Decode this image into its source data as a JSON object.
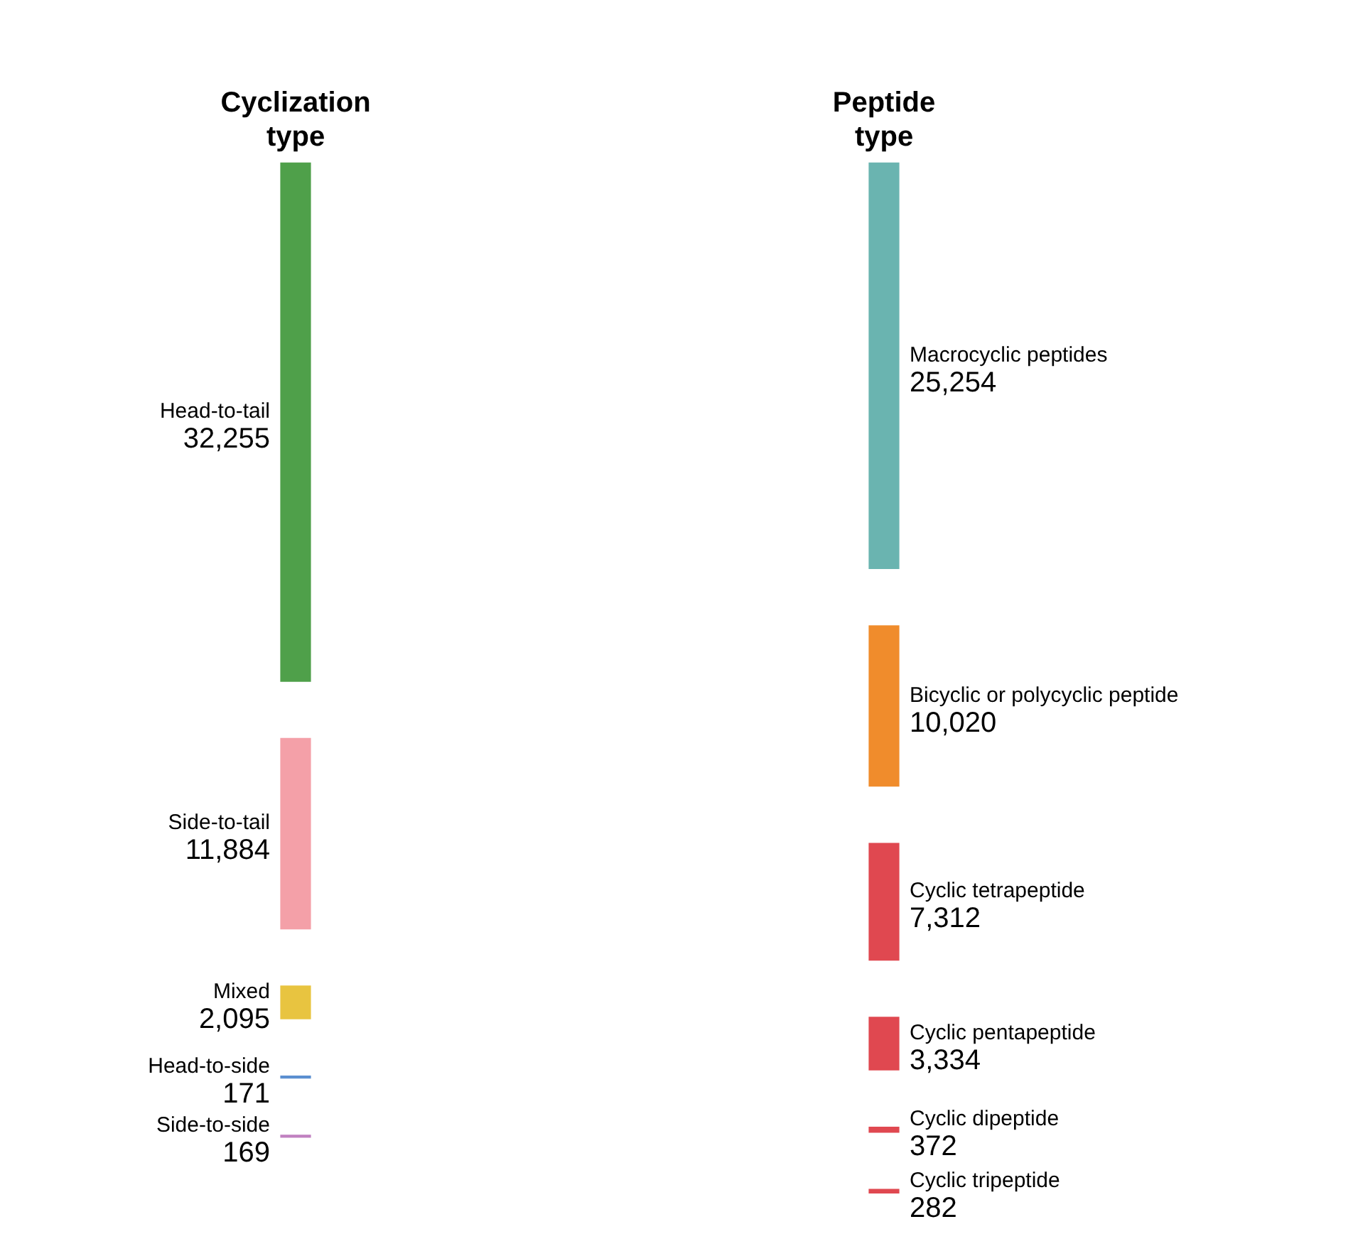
{
  "chart_data": {
    "type": "other",
    "categories": [
      "Head-to-tail",
      "Side-to-tail",
      "Mixed",
      "Head-to-side",
      "Side-to-side",
      "Macrocyclic peptides",
      "Bicyclic or polycyclic peptide",
      "Cyclic tetrapeptide",
      "Cyclic pentapeptide",
      "Cyclic dipeptide",
      "Cyclic tripeptide"
    ],
    "annotations": [
      "Cyclization type",
      "Peptide type"
    ],
    "series": [
      {
        "values": [
          32255,
          11884,
          2095,
          171,
          169,
          null,
          null,
          null,
          null,
          null,
          null
        ],
        "value_labels": [
          "32,255",
          "11,884",
          "2,095",
          "171",
          "169",
          null,
          null,
          null,
          null,
          null,
          null
        ],
        "colors": [
          "#4fa04a",
          "#f4a0a8",
          "#e8c440",
          "#5b8fd0",
          "#c080c0",
          null,
          null,
          null,
          null,
          null,
          null
        ]
      },
      {
        "values": [
          null,
          null,
          null,
          null,
          null,
          25254,
          10020,
          7312,
          3334,
          372,
          282
        ],
        "value_labels": [
          null,
          null,
          null,
          null,
          null,
          "25,254",
          "10,020",
          "7,312",
          "3,334",
          "372",
          "282"
        ],
        "colors": [
          null,
          null,
          null,
          null,
          null,
          "#6ab4b0",
          "#f08c2c",
          "#e04850",
          "#e04850",
          "#e04850",
          "#e04850"
        ]
      }
    ]
  }
}
